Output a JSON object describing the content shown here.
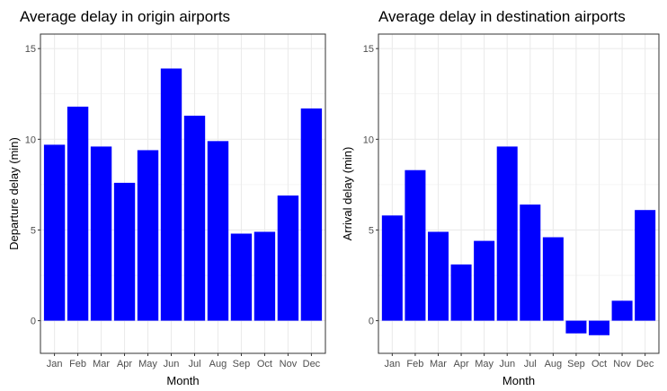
{
  "chart_data": [
    {
      "type": "bar",
      "title": "Average delay in origin airports",
      "xlabel": "Month",
      "ylabel": "Departure delay (min)",
      "categories": [
        "Jan",
        "Feb",
        "Mar",
        "Apr",
        "May",
        "Jun",
        "Jul",
        "Aug",
        "Sep",
        "Oct",
        "Nov",
        "Dec"
      ],
      "values": [
        9.7,
        11.8,
        9.6,
        7.6,
        9.4,
        13.9,
        11.3,
        9.9,
        4.8,
        4.9,
        6.9,
        11.7
      ],
      "ylim": [
        -1.8,
        15.8
      ],
      "yticks": [
        0,
        5,
        10,
        15
      ],
      "grid": true,
      "bar_color": "#0000ff",
      "panel_border_color": "#333333",
      "grid_color": "#ebebeb"
    },
    {
      "type": "bar",
      "title": "Average delay in destination airports",
      "xlabel": "Month",
      "ylabel": "Arrival delay (min)",
      "categories": [
        "Jan",
        "Feb",
        "Mar",
        "Apr",
        "May",
        "Jun",
        "Jul",
        "Aug",
        "Sep",
        "Oct",
        "Nov",
        "Dec"
      ],
      "values": [
        5.8,
        8.3,
        4.9,
        3.1,
        4.4,
        9.6,
        6.4,
        4.6,
        -0.7,
        -0.8,
        1.1,
        6.1
      ],
      "ylim": [
        -1.8,
        15.8
      ],
      "yticks": [
        0,
        5,
        10,
        15
      ],
      "grid": true,
      "bar_color": "#0000ff",
      "panel_border_color": "#333333",
      "grid_color": "#ebebeb"
    }
  ]
}
